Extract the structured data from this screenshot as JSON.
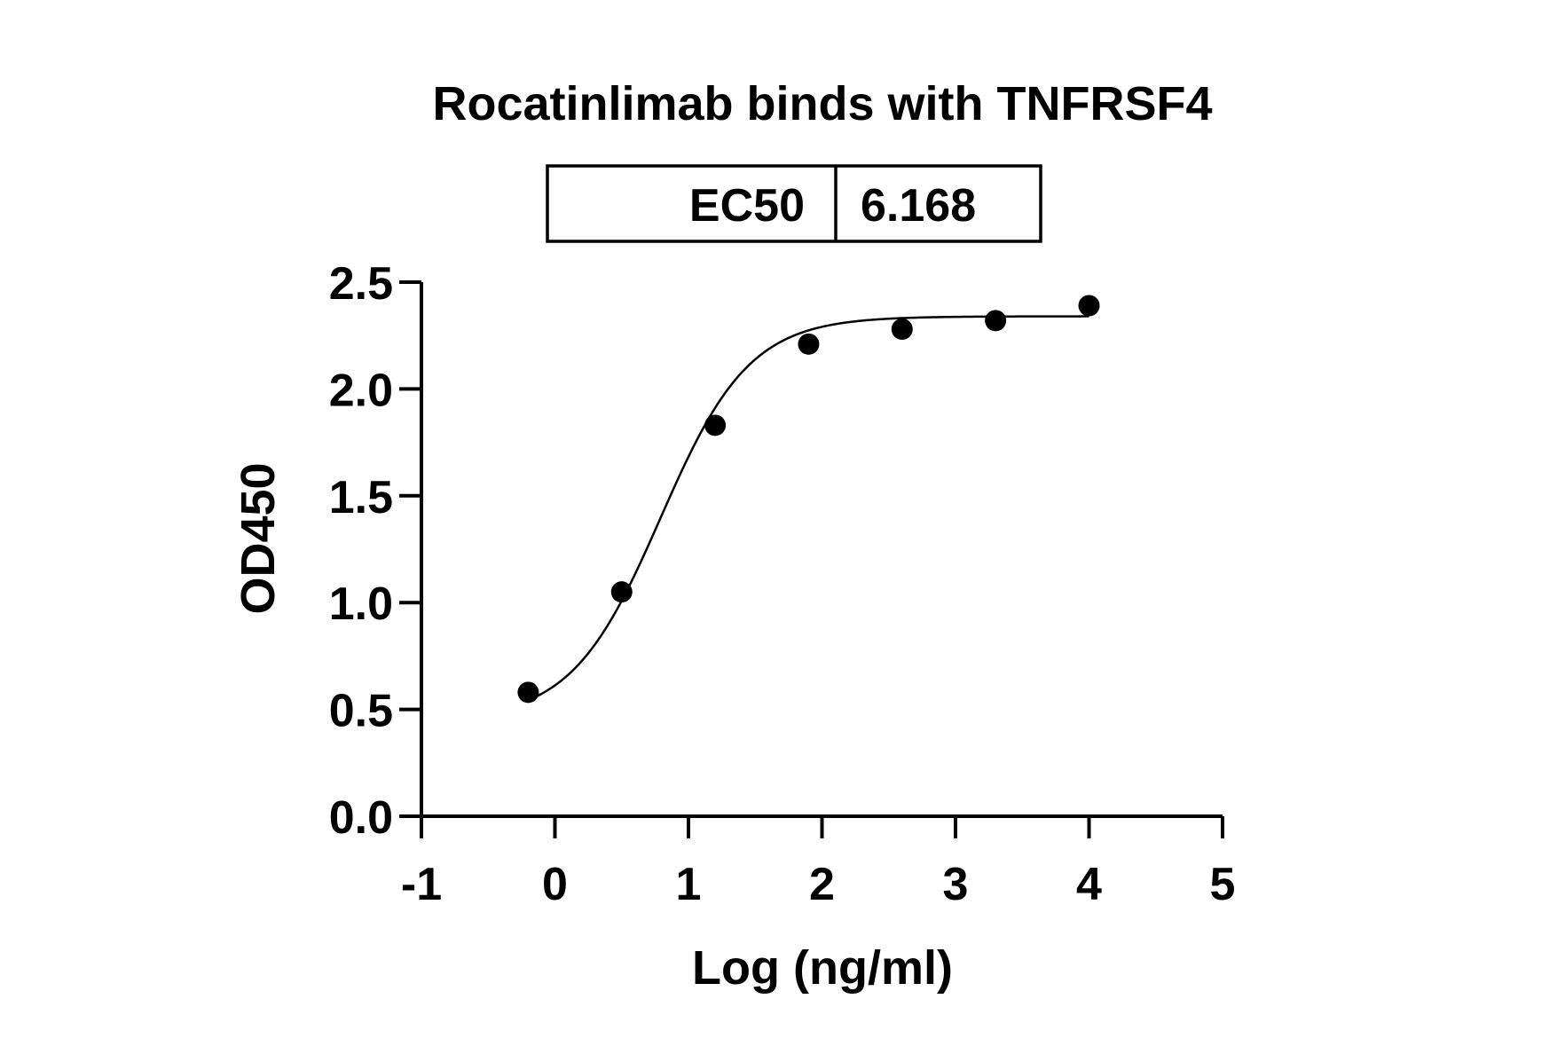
{
  "chart_data": {
    "type": "scatter",
    "title": "Rocatinlimab binds with TNFRSF4",
    "xlabel": "Log (ng/ml)",
    "ylabel": "OD450",
    "xlim": [
      -1,
      5
    ],
    "ylim": [
      0,
      2.5
    ],
    "x_ticks": [
      "-1",
      "0",
      "1",
      "2",
      "3",
      "4",
      "5"
    ],
    "y_ticks": [
      "0.0",
      "0.5",
      "1.0",
      "1.5",
      "2.0",
      "2.5"
    ],
    "grid": false,
    "legend": "none",
    "ec50_label": "EC50",
    "ec50_value": "6.168",
    "series": [
      {
        "x": [
          -0.2,
          0.5,
          1.2,
          1.9,
          2.6,
          3.3,
          4.0
        ],
        "y": [
          0.58,
          1.05,
          1.83,
          2.21,
          2.28,
          2.32,
          2.39
        ]
      }
    ],
    "fit_curve": {
      "model": "4PL",
      "bottom": 0.45,
      "top": 2.34,
      "log_ec50": 0.79,
      "hill": 1.3,
      "x_range": [
        -0.2,
        4.0
      ]
    },
    "colors": {
      "marker": "#000000",
      "line": "#000000"
    }
  }
}
